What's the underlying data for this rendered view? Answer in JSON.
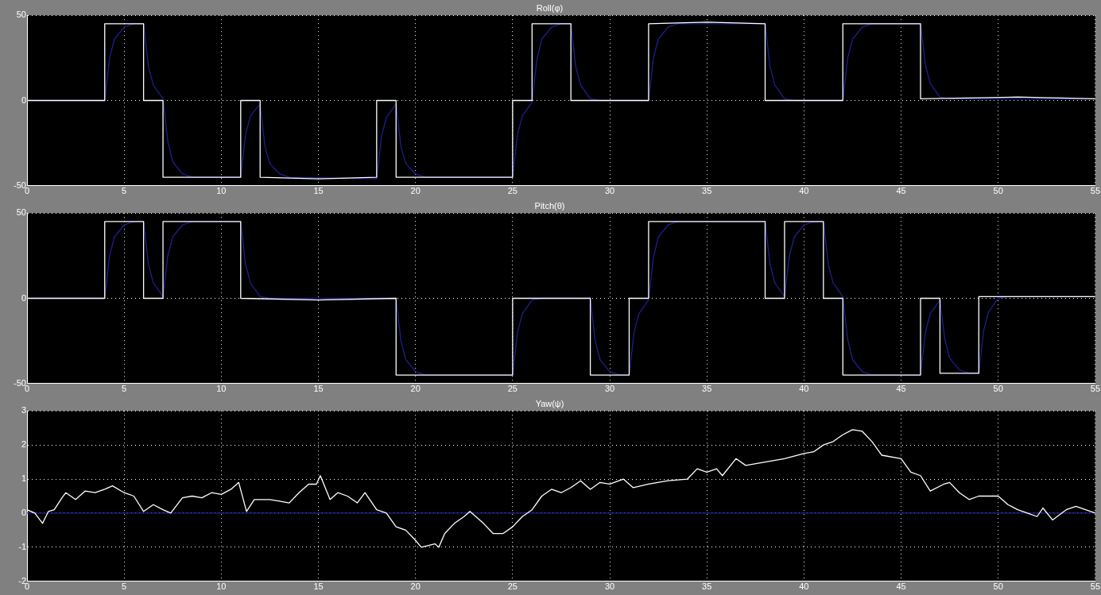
{
  "chart_data": [
    {
      "type": "line",
      "title": "Roll(φ)",
      "xlim": [
        0,
        55
      ],
      "xticks": [
        0,
        5,
        10,
        15,
        20,
        25,
        30,
        35,
        40,
        45,
        50,
        55
      ],
      "ylim": [
        -50,
        50
      ],
      "yticks": [
        -50,
        0,
        50
      ],
      "grid": true,
      "legend": false,
      "series": [
        {
          "color": "#ffffff",
          "x": [
            0,
            4,
            4,
            6,
            6,
            7,
            7,
            11,
            11,
            12,
            12,
            15,
            18,
            18,
            19,
            19,
            25,
            25,
            26,
            26,
            28,
            28,
            32,
            32,
            35,
            38,
            38,
            42,
            42,
            46,
            46,
            51,
            55
          ],
          "values": [
            0,
            0,
            45,
            45,
            0,
            0,
            -45,
            -45,
            0,
            0,
            -45,
            -46,
            -45,
            0,
            0,
            -45,
            -45,
            0,
            0,
            45,
            45,
            0,
            0,
            45,
            46,
            45,
            0,
            0,
            45,
            45,
            1,
            2,
            1
          ]
        },
        {
          "color": "#1e1e8c",
          "x": [
            0,
            4,
            4.25,
            4.5,
            5,
            5.5,
            6,
            6.25,
            6.5,
            7,
            7.25,
            7.5,
            8,
            8.5,
            11,
            11.25,
            11.5,
            12,
            12.25,
            12.5,
            13,
            13.5,
            18,
            18.25,
            18.5,
            19,
            19.25,
            19.5,
            20,
            20.5,
            25,
            25.25,
            25.5,
            26,
            26.25,
            26.5,
            27,
            27.5,
            28,
            28.25,
            28.5,
            29,
            29.5,
            32,
            32.25,
            32.5,
            33,
            33.5,
            38,
            38.25,
            38.5,
            39,
            39.5,
            42,
            42.25,
            42.5,
            43,
            43.5,
            46,
            46.25,
            46.5,
            47,
            47.5,
            55
          ],
          "values": [
            0,
            0,
            25,
            36,
            43,
            45,
            45,
            20,
            9,
            1,
            -24,
            -36,
            -43,
            -45,
            -45,
            -20,
            -9,
            -2,
            -27,
            -37,
            -43,
            -45,
            -46,
            -21,
            -10,
            -2,
            -27,
            -37,
            -43,
            -45,
            -45,
            -20,
            -9,
            -1,
            24,
            36,
            43,
            45,
            45,
            20,
            9,
            1,
            0,
            0,
            25,
            36,
            43,
            45,
            45,
            20,
            9,
            1,
            0,
            0,
            25,
            36,
            43,
            45,
            45,
            21,
            10,
            2,
            1,
            1
          ]
        }
      ]
    },
    {
      "type": "line",
      "title": "Pitch(θ)",
      "xlim": [
        0,
        55
      ],
      "xticks": [
        0,
        5,
        10,
        15,
        20,
        25,
        30,
        35,
        40,
        45,
        50,
        55
      ],
      "ylim": [
        -50,
        50
      ],
      "yticks": [
        -50,
        0,
        50
      ],
      "grid": true,
      "legend": false,
      "series": [
        {
          "color": "#ffffff",
          "x": [
            0,
            4,
            4,
            6,
            6,
            7,
            7,
            11,
            11,
            15,
            19,
            19,
            25,
            25,
            29,
            29,
            31,
            31,
            32,
            32,
            38,
            38,
            39,
            39,
            41,
            41,
            42,
            42,
            46,
            46,
            47,
            47,
            49,
            49,
            55
          ],
          "values": [
            0,
            0,
            45,
            45,
            0,
            0,
            45,
            45,
            0,
            -1,
            0,
            -45,
            -45,
            0,
            0,
            -45,
            -45,
            0,
            0,
            45,
            45,
            0,
            0,
            45,
            45,
            0,
            0,
            -45,
            -45,
            0,
            0,
            -44,
            -44,
            1,
            1
          ]
        },
        {
          "color": "#1e1e8c",
          "x": [
            0,
            4,
            4.25,
            4.5,
            5,
            5.5,
            6,
            6.25,
            6.5,
            7,
            7.25,
            7.5,
            8,
            8.5,
            11,
            11.25,
            11.5,
            12,
            12.5,
            19,
            19.25,
            19.5,
            20,
            20.5,
            25,
            25.25,
            25.5,
            26,
            26.5,
            29,
            29.25,
            29.5,
            30,
            30.5,
            31,
            31.25,
            31.5,
            32,
            32.25,
            32.5,
            33,
            33.5,
            38,
            38.25,
            38.5,
            39,
            39.25,
            39.5,
            40,
            40.5,
            41,
            41.25,
            41.5,
            42,
            42.25,
            42.5,
            43,
            43.5,
            46,
            46.25,
            46.5,
            47,
            47.25,
            47.5,
            48,
            48.5,
            49,
            49.25,
            49.5,
            50,
            50.5,
            55
          ],
          "values": [
            0,
            0,
            25,
            36,
            43,
            45,
            45,
            20,
            9,
            1,
            25,
            36,
            43,
            45,
            45,
            20,
            9,
            1,
            0,
            0,
            -25,
            -36,
            -43,
            -45,
            -45,
            -20,
            -9,
            -1,
            0,
            0,
            -25,
            -36,
            -43,
            -45,
            -45,
            -20,
            -9,
            -1,
            24,
            36,
            43,
            45,
            45,
            20,
            9,
            1,
            25,
            36,
            43,
            45,
            45,
            20,
            9,
            1,
            -24,
            -36,
            -43,
            -45,
            -45,
            -20,
            -9,
            -1,
            -24,
            -35,
            -42,
            -44,
            -44,
            -19,
            -8,
            0,
            1,
            1
          ]
        }
      ]
    },
    {
      "type": "line",
      "title": "Yaw(ψ)",
      "xlim": [
        0,
        55
      ],
      "xticks": [
        0,
        5,
        10,
        15,
        20,
        25,
        30,
        35,
        40,
        45,
        50,
        55
      ],
      "ylim": [
        -2,
        3
      ],
      "yticks": [
        -2,
        -1,
        0,
        1,
        2,
        3
      ],
      "grid": true,
      "legend": false,
      "series": [
        {
          "color": "#ffffff",
          "x": [
            0,
            0.4,
            0.8,
            1.1,
            1.4,
            1.8,
            2,
            2.5,
            3,
            3.5,
            4,
            4.4,
            5,
            5.5,
            6,
            6.5,
            7,
            7.4,
            8,
            8.5,
            9,
            9.5,
            10,
            10.5,
            10.9,
            11.3,
            11.7,
            12.5,
            13,
            13.5,
            14,
            14.5,
            14.9,
            15.1,
            15.6,
            16,
            16.5,
            17,
            17.4,
            18,
            18.5,
            19,
            19.5,
            20,
            20.3,
            21,
            21.2,
            21.5,
            22,
            22.5,
            22.8,
            23.5,
            24,
            24.5,
            25,
            25.5,
            26,
            26.5,
            27,
            27.5,
            28,
            28.5,
            29,
            29.5,
            30,
            30.7,
            31.2,
            32,
            33,
            34,
            34.5,
            35,
            35.5,
            35.8,
            36.5,
            37,
            38,
            39,
            40,
            40.5,
            41,
            41.5,
            42,
            42.5,
            43,
            43.5,
            44,
            45,
            45.5,
            46,
            46.5,
            47.2,
            47.5,
            48,
            48.5,
            49,
            49.5,
            50,
            50.5,
            51,
            51.5,
            52,
            52.3,
            52.8,
            53.5,
            54,
            54.5,
            55
          ],
          "values": [
            0.1,
            0,
            -0.3,
            0.05,
            0.1,
            0.45,
            0.6,
            0.4,
            0.65,
            0.6,
            0.7,
            0.8,
            0.6,
            0.5,
            0.05,
            0.25,
            0.1,
            0,
            0.45,
            0.5,
            0.45,
            0.6,
            0.55,
            0.7,
            0.9,
            0.05,
            0.4,
            0.4,
            0.35,
            0.3,
            0.6,
            0.85,
            0.85,
            1.1,
            0.4,
            0.6,
            0.5,
            0.3,
            0.6,
            0.1,
            0,
            -0.4,
            -0.5,
            -0.8,
            -1,
            -0.9,
            -1,
            -0.6,
            -0.3,
            -0.1,
            0.05,
            -0.3,
            -0.6,
            -0.6,
            -0.4,
            -0.1,
            0.1,
            0.5,
            0.7,
            0.6,
            0.75,
            0.95,
            0.7,
            0.9,
            0.85,
            1,
            0.75,
            0.85,
            0.95,
            1,
            1.3,
            1.2,
            1.3,
            1.1,
            1.6,
            1.4,
            1.5,
            1.6,
            1.75,
            1.8,
            2,
            2.1,
            2.3,
            2.45,
            2.4,
            2.1,
            1.7,
            1.6,
            1.2,
            1.1,
            0.65,
            0.85,
            0.9,
            0.6,
            0.4,
            0.5,
            0.5,
            0.5,
            0.25,
            0.1,
            0,
            -0.1,
            0.15,
            -0.2,
            0.1,
            0.2,
            0.1,
            0
          ]
        },
        {
          "color": "#1e1e8c",
          "x": [
            0,
            55
          ],
          "values": [
            0,
            0
          ]
        }
      ]
    }
  ]
}
